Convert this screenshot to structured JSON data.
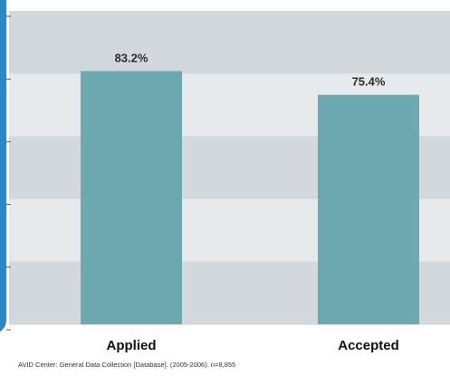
{
  "chart_data": {
    "type": "bar",
    "categories": [
      "Applied",
      "Accepted"
    ],
    "values": [
      83.2,
      75.4
    ],
    "value_labels": [
      "83.2%",
      "75.4%"
    ],
    "ylim": [
      0,
      100
    ],
    "grid": "alternating horizontal bands",
    "legend": "none"
  },
  "source_note": "AVID Center: General Data Collection [Database]. (2005-2006). n=8,855",
  "colors": {
    "bar": "#6ea9b2",
    "band_dark": "#d3d8dc",
    "band_light": "#e7eaed",
    "frame_blue": "#2a86c4",
    "axis_tick": "#555555"
  }
}
